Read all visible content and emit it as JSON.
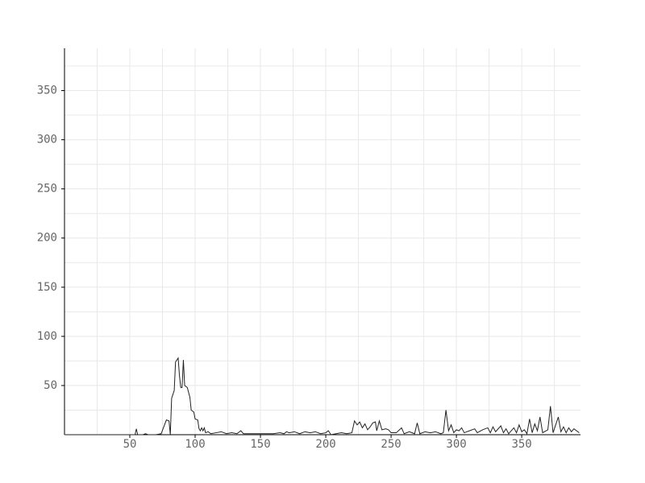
{
  "chart_data": {
    "type": "line",
    "x": [
      0,
      10,
      20,
      30,
      40,
      50,
      54,
      55,
      56,
      60,
      62,
      64,
      70,
      74,
      76,
      78,
      80,
      81,
      82,
      84,
      85,
      87,
      88,
      89,
      90,
      91,
      92,
      94,
      96,
      97,
      99,
      100,
      102,
      103,
      104,
      105,
      106,
      107,
      108,
      110,
      112,
      116,
      120,
      124,
      128,
      132,
      135,
      137,
      140,
      150,
      160,
      165,
      168,
      170,
      172,
      176,
      180,
      184,
      188,
      192,
      196,
      200,
      202,
      204,
      208,
      212,
      216,
      220,
      222,
      224,
      226,
      228,
      230,
      232,
      234,
      236,
      238,
      239,
      241,
      243,
      246,
      248,
      250,
      254,
      258,
      260,
      264,
      268,
      270,
      272,
      276,
      280,
      284,
      288,
      290,
      292,
      294,
      296,
      298,
      300,
      302,
      304,
      306,
      310,
      314,
      316,
      320,
      324,
      326,
      328,
      330,
      334,
      336,
      338,
      340,
      344,
      346,
      348,
      350,
      352,
      354,
      356,
      358,
      360,
      362,
      364,
      366,
      370,
      372,
      374,
      376,
      378,
      380,
      382,
      384,
      386,
      388,
      390,
      392,
      394
    ],
    "series": [
      {
        "color": "#222222",
        "values": [
          0,
          0,
          0,
          0,
          0,
          0,
          0,
          6,
          0,
          0,
          1,
          0,
          0,
          1,
          8,
          15,
          14,
          0,
          37,
          45,
          74,
          78,
          60,
          48,
          48,
          76,
          50,
          48,
          38,
          25,
          23,
          16,
          15,
          6,
          4,
          7,
          4,
          7,
          2,
          3,
          1,
          2,
          3,
          1,
          2,
          1,
          4,
          1,
          1,
          1,
          1,
          2,
          1,
          3,
          2,
          3,
          1,
          3,
          2,
          3,
          1,
          2,
          4,
          0,
          1,
          2,
          1,
          2,
          14,
          10,
          13,
          7,
          11,
          5,
          8,
          12,
          13,
          4,
          14,
          5,
          6,
          5,
          2,
          2,
          7,
          1,
          3,
          1,
          12,
          1,
          3,
          2,
          3,
          1,
          2,
          25,
          4,
          10,
          2,
          5,
          4,
          7,
          2,
          4,
          6,
          2,
          5,
          7,
          2,
          8,
          3,
          9,
          2,
          6,
          1,
          7,
          2,
          10,
          3,
          5,
          1,
          16,
          2,
          11,
          4,
          18,
          2,
          5,
          29,
          2,
          10,
          18,
          3,
          8,
          2,
          7,
          3,
          6,
          4,
          2
        ]
      }
    ],
    "xlim": [
      0,
      395
    ],
    "ylim": [
      0,
      393
    ],
    "xticks": [
      50,
      100,
      150,
      200,
      250,
      300,
      350
    ],
    "yticks": [
      50,
      100,
      150,
      200,
      250,
      300,
      350
    ],
    "xgrid": [
      25,
      50,
      75,
      100,
      125,
      150,
      175,
      200,
      225,
      250,
      275,
      300,
      325,
      350,
      375
    ],
    "ygrid": [
      25,
      50,
      75,
      100,
      125,
      150,
      175,
      200,
      225,
      250,
      275,
      300,
      325,
      350,
      375
    ],
    "grid": true
  }
}
